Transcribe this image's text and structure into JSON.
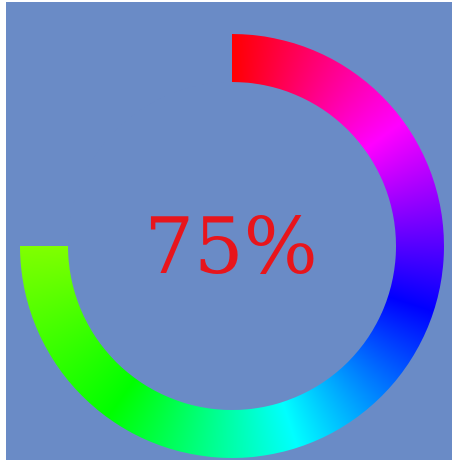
{
  "progress": {
    "value": 75,
    "fraction": 0.75,
    "label": "75%"
  },
  "colors": {
    "background": "#6a8bc6",
    "label": "#e8151b",
    "gradient_stops": [
      "#ff0000",
      "#ff00ff",
      "#0000ff",
      "#00ffff",
      "#00ff00",
      "#80ff00"
    ]
  }
}
